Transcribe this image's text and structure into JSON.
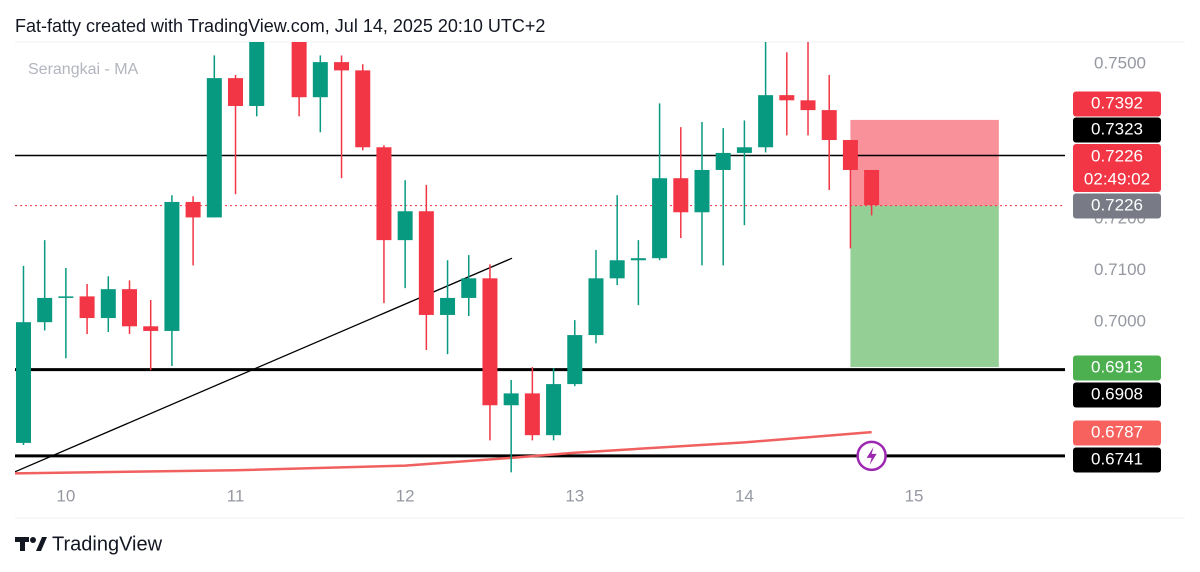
{
  "chart_data": {
    "type": "candlestick",
    "title": "Fat-fatty created with TradingView.com, Jul 14, 2025 20:10 UTC+2",
    "legend": "Serangkai - MA",
    "brand": "TradingView",
    "up_color": "#089981",
    "down_color": "#f23645",
    "x": [
      9.75,
      9.875,
      10,
      10.125,
      10.25,
      10.375,
      10.5,
      10.625,
      10.75,
      10.875,
      11,
      11.125,
      11.375,
      11.5,
      11.625,
      11.75,
      11.875,
      12,
      12.125,
      12.25,
      12.375,
      12.5,
      12.625,
      12.75,
      12.875,
      13,
      13.125,
      13.25,
      13.375,
      13.5,
      13.625,
      13.75,
      13.875,
      14,
      14.125,
      14.25,
      14.375,
      14.5,
      14.625,
      14.75
    ],
    "open": [
      0.6766,
      0.7,
      0.7047,
      0.705,
      0.7008,
      0.7064,
      0.6992,
      0.6983,
      0.7233,
      0.7203,
      0.7473,
      0.7419,
      0.755,
      0.7436,
      0.7504,
      0.7488,
      0.7339,
      0.7159,
      0.7215,
      0.7014,
      0.7047,
      0.7085,
      0.6839,
      0.6862,
      0.6781,
      0.688,
      0.6975,
      0.7085,
      0.712,
      0.7124,
      0.7279,
      0.7213,
      0.7295,
      0.7328,
      0.7339,
      0.744,
      0.743,
      0.7411,
      0.7353,
      0.7295
    ],
    "high": [
      0.7109,
      0.7159,
      0.7105,
      0.7074,
      0.7089,
      0.7081,
      0.7043,
      0.7246,
      0.7244,
      0.7517,
      0.7479,
      0.7566,
      0.756,
      0.7517,
      0.7517,
      0.75,
      0.7343,
      0.7275,
      0.7266,
      0.712,
      0.713,
      0.7112,
      0.6888,
      0.6913,
      0.6911,
      0.7004,
      0.714,
      0.7246,
      0.7159,
      0.7424,
      0.7378,
      0.7388,
      0.7376,
      0.7391,
      0.7543,
      0.7523,
      0.7547,
      0.7479,
      0.7353,
      0.7295
    ],
    "low": [
      0.6762,
      0.6984,
      0.693,
      0.6977,
      0.6981,
      0.6977,
      0.6907,
      0.6915,
      0.711,
      0.7203,
      0.7248,
      0.7399,
      0.7399,
      0.7368,
      0.7279,
      0.7333,
      0.7037,
      0.7066,
      0.6946,
      0.6938,
      0.7012,
      0.6771,
      0.6709,
      0.6771,
      0.6771,
      0.6876,
      0.6959,
      0.7072,
      0.7033,
      0.712,
      0.7163,
      0.711,
      0.711,
      0.7188,
      0.7329,
      0.7362,
      0.7362,
      0.7256,
      0.7143,
      0.7207
    ],
    "close": [
      0.7,
      0.7047,
      0.705,
      0.7008,
      0.7064,
      0.6992,
      0.6983,
      0.7233,
      0.7203,
      0.7473,
      0.7419,
      0.755,
      0.7436,
      0.7504,
      0.7488,
      0.7339,
      0.7159,
      0.7215,
      0.7014,
      0.7047,
      0.7085,
      0.6839,
      0.6862,
      0.6781,
      0.688,
      0.6975,
      0.7085,
      0.712,
      0.7124,
      0.7279,
      0.7213,
      0.7295,
      0.7328,
      0.7339,
      0.744,
      0.743,
      0.7411,
      0.7353,
      0.7295,
      0.7227
    ],
    "xlim": [
      9.7,
      15.89
    ],
    "ylim": [
      0.6698,
      0.7543
    ],
    "xticks": [
      10,
      11,
      12,
      13,
      14,
      15
    ],
    "yticks": [
      {
        "value": 0.75,
        "label": "0.7500"
      },
      {
        "value": 0.72,
        "label": "0.7200"
      },
      {
        "value": 0.71,
        "label": "0.7100"
      },
      {
        "value": 0.7,
        "label": "0.7000"
      }
    ],
    "ma": {
      "color": "#f0605f",
      "x": [
        9.7,
        11,
        12,
        12.625,
        13,
        14,
        14.75
      ],
      "values": [
        0.6707,
        0.6713,
        0.6722,
        0.6737,
        0.6747,
        0.6767,
        0.6787
      ]
    },
    "trend_line": {
      "x": [
        9.7,
        12.63
      ],
      "values": [
        0.671,
        0.7124
      ]
    },
    "horizontal_lines": [
      {
        "price": 0.7323,
        "weight": 1.5
      },
      {
        "price": 0.6908,
        "weight": 3
      },
      {
        "price": 0.6741,
        "weight": 3
      }
    ],
    "position": {
      "entry": 0.7226,
      "stop": 0.7392,
      "target": 0.6913,
      "x": [
        14.625,
        15.5
      ]
    },
    "last_price": {
      "value": 0.7226,
      "countdown": "02:49:02"
    }
  }
}
